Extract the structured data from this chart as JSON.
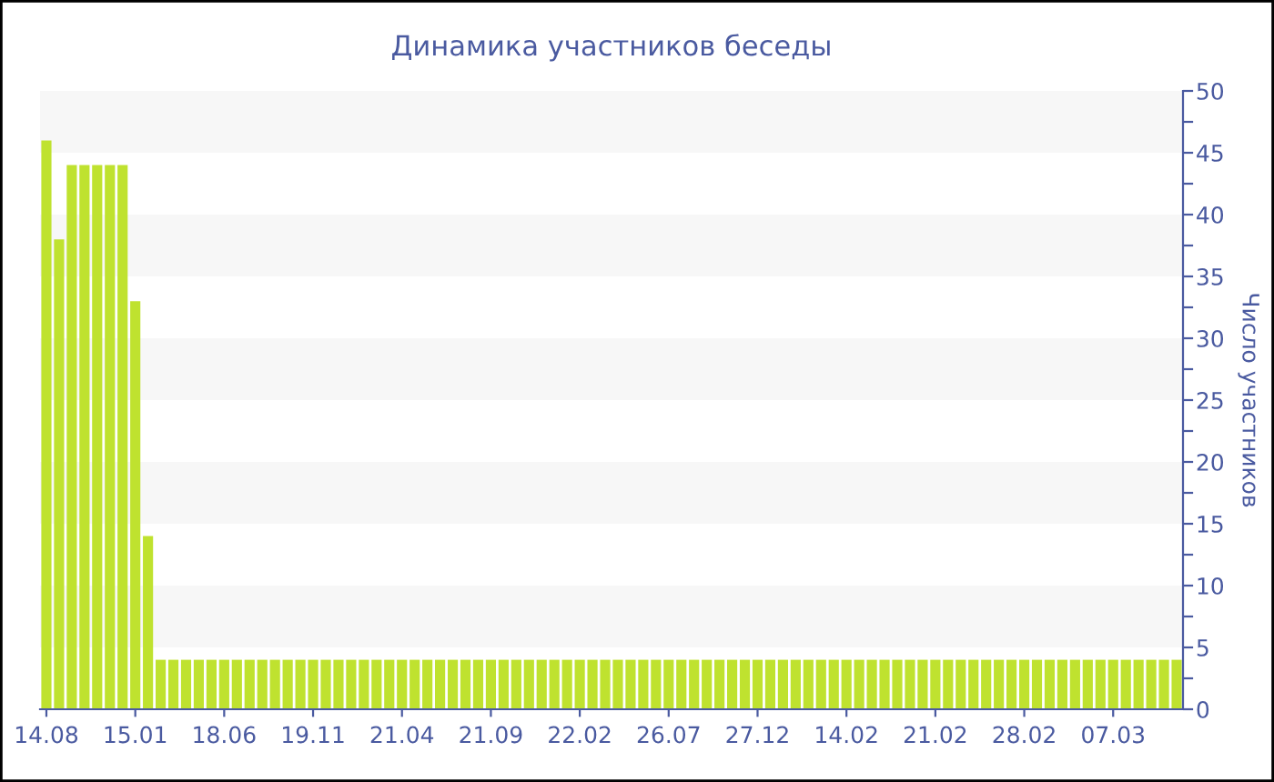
{
  "chart_data": {
    "type": "bar",
    "title": "Динамика участников беседы",
    "ylabel": "Число участников",
    "categories": [
      "14.08",
      null,
      null,
      null,
      null,
      null,
      null,
      "15.01",
      null,
      null,
      null,
      null,
      null,
      null,
      "18.06",
      null,
      null,
      null,
      null,
      null,
      null,
      "19.11",
      null,
      null,
      null,
      null,
      null,
      null,
      "21.04",
      null,
      null,
      null,
      null,
      null,
      null,
      "21.09",
      null,
      null,
      null,
      null,
      null,
      null,
      "22.02",
      null,
      null,
      null,
      null,
      null,
      null,
      "26.07",
      null,
      null,
      null,
      null,
      null,
      null,
      "27.12",
      null,
      null,
      null,
      null,
      null,
      null,
      "14.02",
      null,
      null,
      null,
      null,
      null,
      null,
      "21.02",
      null,
      null,
      null,
      null,
      null,
      null,
      "28.02",
      null,
      null,
      null,
      null,
      null,
      null,
      "07.03",
      null,
      null,
      null,
      null,
      null
    ],
    "values": [
      46,
      38,
      44,
      44,
      44,
      44,
      44,
      33,
      14,
      4,
      4,
      4,
      4,
      4,
      4,
      4,
      4,
      4,
      4,
      4,
      4,
      4,
      4,
      4,
      4,
      4,
      4,
      4,
      4,
      4,
      4,
      4,
      4,
      4,
      4,
      4,
      4,
      4,
      4,
      4,
      4,
      4,
      4,
      4,
      4,
      4,
      4,
      4,
      4,
      4,
      4,
      4,
      4,
      4,
      4,
      4,
      4,
      4,
      4,
      4,
      4,
      4,
      4,
      4,
      4,
      4,
      4,
      4,
      4,
      4,
      4,
      4,
      4,
      4,
      4,
      4,
      4,
      4,
      4,
      4,
      4,
      4,
      4,
      4,
      4,
      4,
      4,
      4,
      4,
      4
    ],
    "color": "#bfe22f",
    "ylim": [
      0,
      50
    ],
    "yticks": [
      0,
      {
        "value": 2.5,
        "label": null
      },
      5,
      {
        "value": 7.5,
        "label": null
      },
      10,
      {
        "value": 12.5,
        "label": null
      },
      15,
      {
        "value": 17.5,
        "label": null
      },
      20,
      {
        "value": 22.5,
        "label": null
      },
      25,
      {
        "value": 27.5,
        "label": null
      },
      30,
      {
        "value": 32.5,
        "label": null
      },
      35,
      {
        "value": 37.5,
        "label": null
      },
      40,
      {
        "value": 42.5,
        "label": null
      },
      45,
      {
        "value": 47.5,
        "label": null
      },
      50
    ],
    "bands": [
      {
        "axis": "y",
        "from": 5,
        "to": 10,
        "color": "#f7f7f7"
      },
      {
        "axis": "y",
        "from": 15,
        "to": 20,
        "color": "#f7f7f7"
      },
      {
        "axis": "y",
        "from": 25,
        "to": 30,
        "color": "#f7f7f7"
      },
      {
        "axis": "y",
        "from": 35,
        "to": 40,
        "color": "#f7f7f7"
      },
      {
        "axis": "y",
        "from": 45,
        "to": 50,
        "color": "#f7f7f7"
      }
    ]
  }
}
